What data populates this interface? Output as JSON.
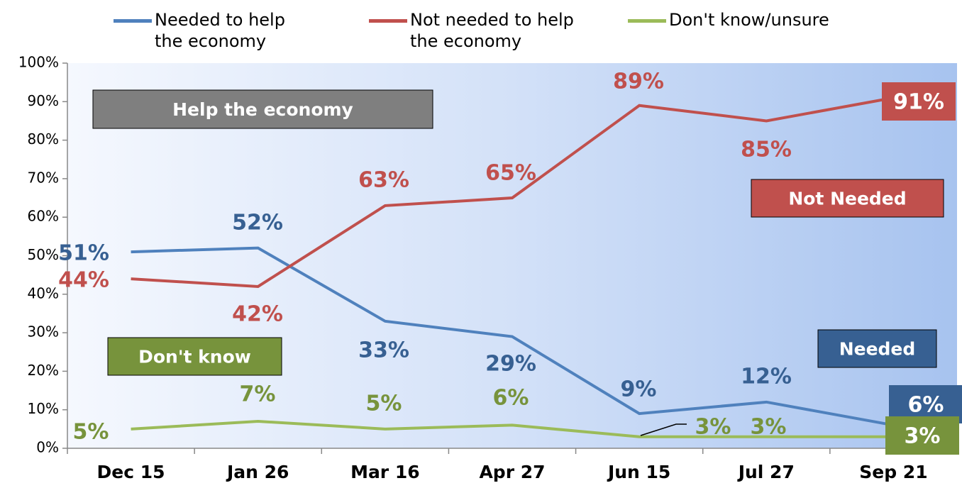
{
  "chart_data": {
    "type": "line",
    "categories": [
      "Dec 15",
      "Jan 26",
      "Mar 16",
      "Apr 27",
      "Jun 15",
      "Jul 27",
      "Sep 21"
    ],
    "series": [
      {
        "name": "Needed to help the economy",
        "color": "#4f81bd",
        "label_color": "#376092",
        "values": [
          51,
          52,
          33,
          29,
          9,
          12,
          6
        ],
        "value_labels": [
          "51%",
          "52%",
          "33%",
          "29%",
          "9%",
          "12%",
          "6%"
        ]
      },
      {
        "name": "Not needed to help the economy",
        "color": "#c0504d",
        "label_color": "#c0504d",
        "values": [
          44,
          42,
          63,
          65,
          89,
          85,
          91
        ],
        "value_labels": [
          "44%",
          "42%",
          "63%",
          "65%",
          "89%",
          "85%",
          "91%"
        ]
      },
      {
        "name": "Don't know/unsure",
        "color": "#9bbb59",
        "label_color": "#77933c",
        "values": [
          5,
          7,
          5,
          6,
          3,
          3,
          3
        ],
        "value_labels": [
          "5%",
          "7%",
          "5%",
          "6%",
          "3%",
          "3%",
          "3%"
        ]
      }
    ],
    "ylim": [
      0,
      100
    ],
    "yticks": [
      {
        "value": 0,
        "label": "0%"
      },
      {
        "value": 10,
        "label": "10%"
      },
      {
        "value": 20,
        "label": "20%"
      },
      {
        "value": 30,
        "label": "30%"
      },
      {
        "value": 40,
        "label": "40%"
      },
      {
        "value": 50,
        "label": "50%"
      },
      {
        "value": 60,
        "label": "60%"
      },
      {
        "value": 70,
        "label": "70%"
      },
      {
        "value": 80,
        "label": "80%"
      },
      {
        "value": 90,
        "label": "90%"
      },
      {
        "value": 100,
        "label": "100%"
      }
    ],
    "grid": false,
    "legend": "top",
    "annotations": [
      {
        "text": "Help the economy"
      },
      {
        "text": "Not Needed"
      },
      {
        "text": "Don't know"
      },
      {
        "text": "Needed"
      }
    ]
  }
}
